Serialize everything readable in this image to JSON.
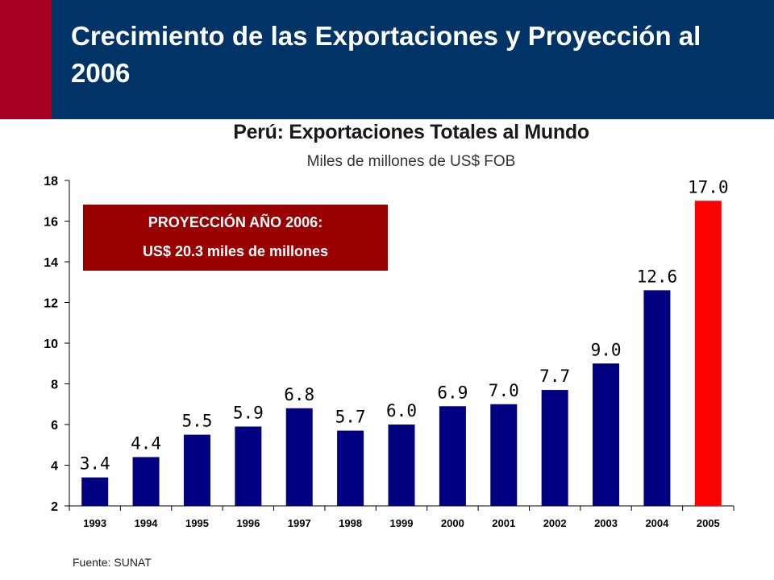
{
  "slide": {
    "title": "Crecimiento de las Exportaciones y Proyección al 2006",
    "colors": {
      "header": "#003366",
      "accent": "#a50021"
    }
  },
  "projection": {
    "line1": "PROYECCIÓN AÑO 2006:",
    "line2": "US$ 20.3 miles de millones",
    "color": "#990000"
  },
  "source": "Fuente: SUNAT",
  "chart_data": {
    "type": "bar",
    "title": "Perú: Exportaciones Totales al Mundo",
    "subtitle": "Miles de millones de US$ FOB",
    "xlabel": "",
    "ylabel": "",
    "ylim": [
      2,
      18
    ],
    "yticks": [
      2,
      4,
      6,
      8,
      10,
      12,
      14,
      16,
      18
    ],
    "categories": [
      "1993",
      "1994",
      "1995",
      "1996",
      "1997",
      "1998",
      "1999",
      "2000",
      "2001",
      "2002",
      "2003",
      "2004",
      "2005"
    ],
    "values": [
      3.4,
      4.4,
      5.5,
      5.9,
      6.8,
      5.7,
      6.0,
      6.9,
      7.0,
      7.7,
      9.0,
      12.6,
      17.0
    ],
    "labels": [
      "3.4",
      "4.4",
      "5.5",
      "5.9",
      "6.8",
      "5.7",
      "6.0",
      "6.9",
      "7.0",
      "7.7",
      "9.0",
      "12.6",
      "17.0"
    ],
    "bar_color": "#000080",
    "highlight_color": "#ff0000",
    "highlight_category": "2005",
    "grid": false
  }
}
